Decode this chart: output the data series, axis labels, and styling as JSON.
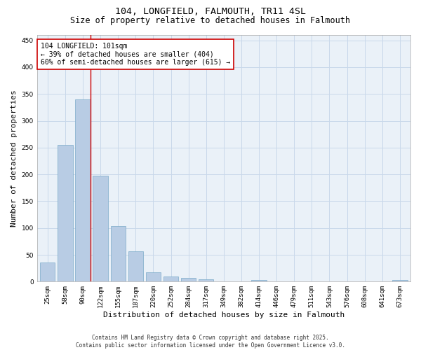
{
  "title_line1": "104, LONGFIELD, FALMOUTH, TR11 4SL",
  "title_line2": "Size of property relative to detached houses in Falmouth",
  "xlabel": "Distribution of detached houses by size in Falmouth",
  "ylabel": "Number of detached properties",
  "categories": [
    "25sqm",
    "58sqm",
    "90sqm",
    "122sqm",
    "155sqm",
    "187sqm",
    "220sqm",
    "252sqm",
    "284sqm",
    "317sqm",
    "349sqm",
    "382sqm",
    "414sqm",
    "446sqm",
    "479sqm",
    "511sqm",
    "543sqm",
    "576sqm",
    "608sqm",
    "641sqm",
    "673sqm"
  ],
  "values": [
    36,
    255,
    340,
    197,
    103,
    57,
    18,
    10,
    7,
    4,
    0,
    0,
    3,
    0,
    0,
    0,
    0,
    0,
    0,
    0,
    3
  ],
  "bar_color": "#b8cce4",
  "bar_edge_color": "#7aaac8",
  "grid_color": "#c8d8ea",
  "bg_color": "#eaf1f8",
  "vline_color": "#cc0000",
  "vline_x_index": 2,
  "annotation_text": "104 LONGFIELD: 101sqm\n← 39% of detached houses are smaller (404)\n60% of semi-detached houses are larger (615) →",
  "annotation_box_edgecolor": "#cc0000",
  "ylim": [
    0,
    460
  ],
  "yticks": [
    0,
    50,
    100,
    150,
    200,
    250,
    300,
    350,
    400,
    450
  ],
  "footer": "Contains HM Land Registry data © Crown copyright and database right 2025.\nContains public sector information licensed under the Open Government Licence v3.0.",
  "title_fontsize": 9.5,
  "subtitle_fontsize": 8.5,
  "tick_fontsize": 6.5,
  "ylabel_fontsize": 8,
  "xlabel_fontsize": 8,
  "annotation_fontsize": 7,
  "footer_fontsize": 5.5
}
